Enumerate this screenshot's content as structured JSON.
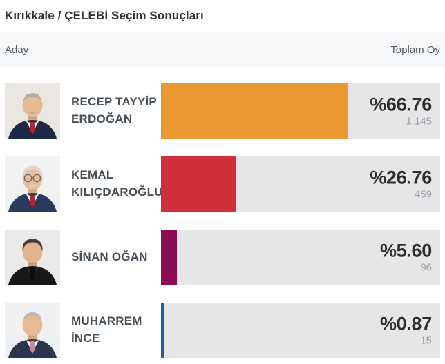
{
  "title": "Kırıkkale / ÇELEBİ Seçim Sonuçları",
  "table_header": {
    "candidate": "Aday",
    "total_votes": "Toplam Oy"
  },
  "colors": {
    "bar_track": "#e6e6e8",
    "header_band": "#f6f7f8",
    "percent_text": "#2e2e2e",
    "count_text": "#a1a1a5",
    "name_text": "#464e56"
  },
  "candidates": [
    {
      "name": "RECEP TAYYİP ERDOĞAN",
      "percent_label": "%66.76",
      "percent": 66.76,
      "votes": "1.145",
      "bar_color": "#e9992f",
      "avatar": {
        "bg": "#eae6e1",
        "suit": "#1d2a45",
        "shirt": "#ffffff",
        "tie": "#b5232d",
        "skin": "#e8b992",
        "skin2": "#d9a67e",
        "hair": "#b3aca3",
        "bald": true,
        "mustache": true,
        "glasses": false
      }
    },
    {
      "name": "KEMAL KILIÇDAROĞLU",
      "percent_label": "%26.76",
      "percent": 26.76,
      "votes": "459",
      "bar_color": "#d02f38",
      "avatar": {
        "bg": "#f1f1f1",
        "suit": "#2a3a5e",
        "shirt": "#ffffff",
        "tie": "#b5232d",
        "skin": "#e9bd97",
        "skin2": "#dcab82",
        "hair": "#d9d8d5",
        "bald": false,
        "mustache": true,
        "glasses": true
      }
    },
    {
      "name": "SİNAN OĞAN",
      "percent_label": "%5.60",
      "percent": 5.6,
      "votes": "96",
      "bar_color": "#8b0e55",
      "avatar": {
        "bg": "#e9e9e9",
        "suit": "#181818",
        "shirt": "#242424",
        "tie": "#0d0d0d",
        "skin": "#e4b38c",
        "skin2": "#d4a077",
        "hair": "#453f3c",
        "bald": false,
        "mustache": false,
        "glasses": false
      }
    },
    {
      "name": "MUHARREM İNCE",
      "percent_label": "%0.87",
      "percent": 0.87,
      "votes": "15",
      "bar_color": "#16639b",
      "avatar": {
        "bg": "#eef0f1",
        "suit": "#2a3550",
        "shirt": "#ffffff",
        "tie": "#c98ba0",
        "skin": "#e8b992",
        "skin2": "#d9a67e",
        "hair": "#b9b9b7",
        "bald": true,
        "mustache": false,
        "glasses": false
      }
    }
  ],
  "chart_data": {
    "type": "bar",
    "orientation": "horizontal",
    "title": "Kırıkkale / ÇELEBİ Seçim Sonuçları",
    "categories": [
      "RECEP TAYYİP ERDOĞAN",
      "KEMAL KILIÇDAROĞLU",
      "SİNAN OĞAN",
      "MUHARREM İNCE"
    ],
    "values": [
      66.76,
      26.76,
      5.6,
      0.87
    ],
    "votes": [
      1145,
      459,
      96,
      15
    ],
    "value_labels": [
      "%66.76",
      "%26.76",
      "%5.60",
      "%0.87"
    ],
    "bar_colors": [
      "#e9992f",
      "#d02f38",
      "#8b0e55",
      "#16639b"
    ],
    "xlim": [
      0,
      100
    ],
    "grid": false,
    "legend": false
  }
}
